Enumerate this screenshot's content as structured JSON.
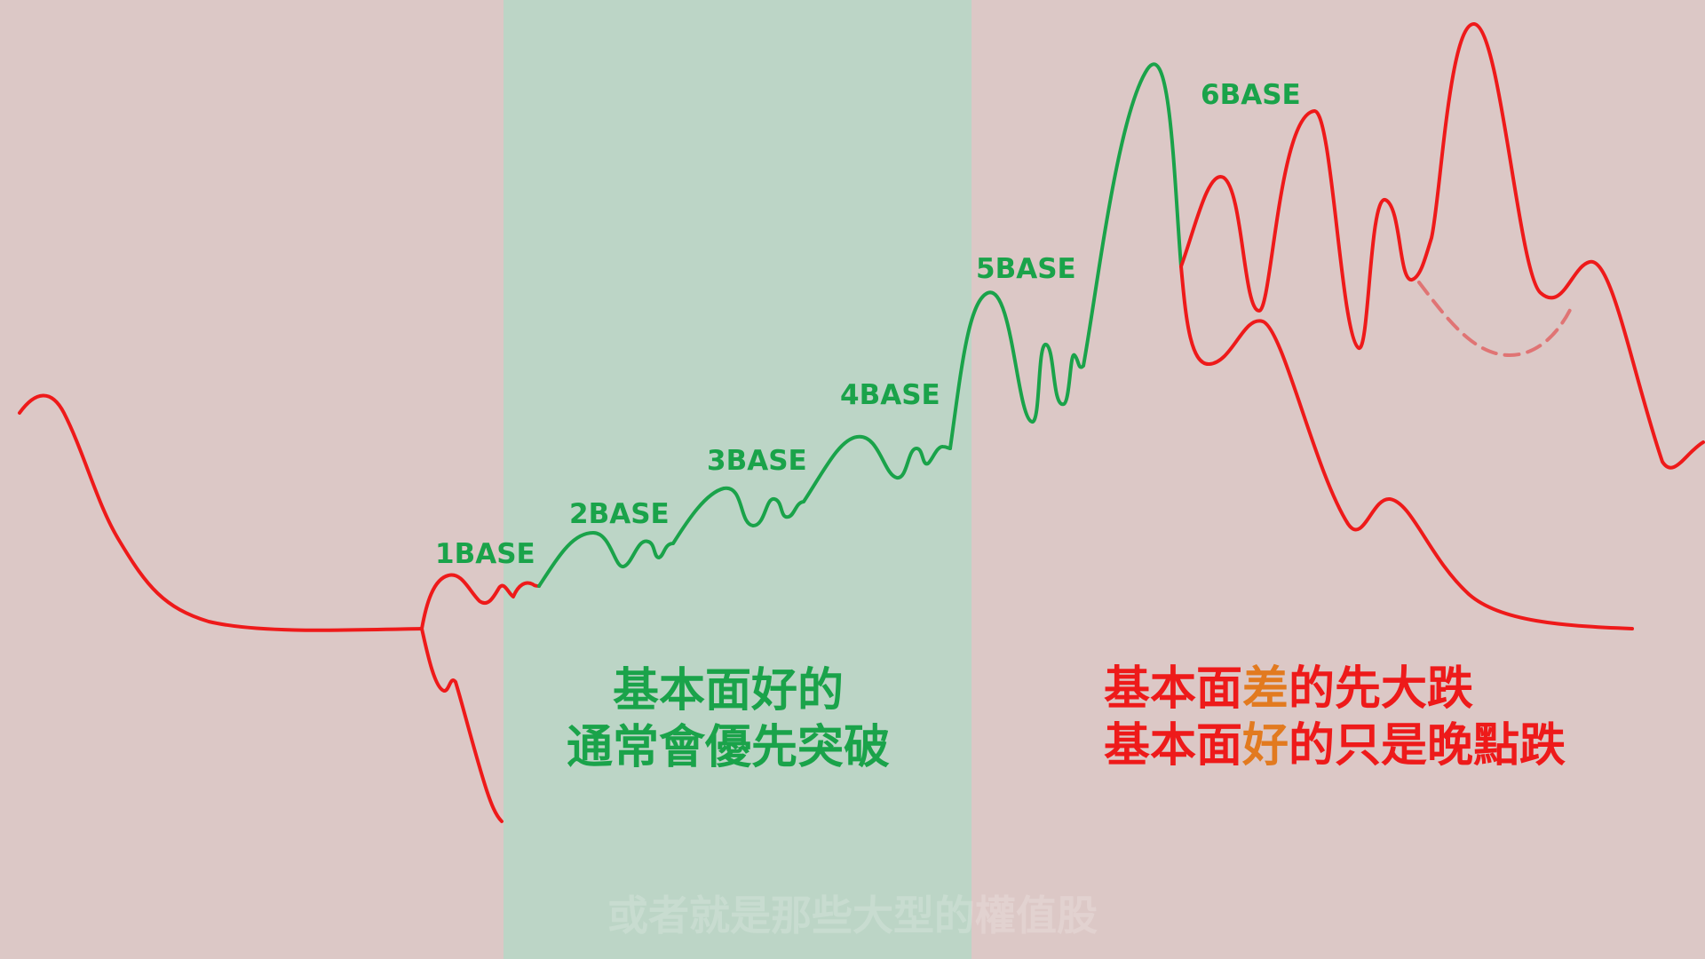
{
  "colors": {
    "background_left": "#dcc8c6",
    "background_middle": "#bcd5c6",
    "background_right": "#dcc8c6",
    "line_red": "#ee1a1a",
    "line_green": "#1aa34a",
    "dashed_pink": "#e07474",
    "highlight_orange": "#e27a1f"
  },
  "base_labels": [
    "1BASE",
    "2BASE",
    "3BASE",
    "4BASE",
    "5BASE",
    "6BASE"
  ],
  "caption_left": {
    "line1": "基本面好的",
    "line2": "通常會優先突破"
  },
  "caption_right": {
    "line1_a": "基本面",
    "line1_hl": "差",
    "line1_b": "的先大跌",
    "line2_a": "基本面",
    "line2_hl": "好",
    "line2_b": "的只是晚點跌"
  },
  "subtitle": "或者就是那些大型的權值股"
}
